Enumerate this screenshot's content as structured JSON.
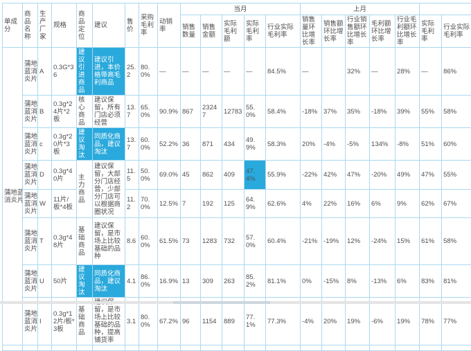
{
  "chart_data": {
    "type": "table",
    "title": "",
    "groups": {
      "current": "当月",
      "last": "上月"
    },
    "columns": [
      {
        "label": "单成分"
      },
      {
        "label": "商品名称"
      },
      {
        "label": "生产厂家"
      },
      {
        "label": "规格"
      },
      {
        "label": "商品定位"
      },
      {
        "label": "建议"
      },
      {
        "label": "售价"
      },
      {
        "label": "采购毛利率"
      },
      {
        "label": "动销率"
      },
      {
        "label": "销售数量"
      },
      {
        "label": "销售金额"
      },
      {
        "label": "实际毛利额"
      },
      {
        "label": "实际毛利率"
      },
      {
        "label": "行业实际毛利率"
      },
      {
        "label": "销售量环比增长率"
      },
      {
        "label": "销售额环比增长率"
      },
      {
        "label": "行业销售额环比增长率"
      },
      {
        "label": "毛利额环比增长率"
      },
      {
        "label": "行业毛利额环比增长率"
      },
      {
        "label": "实际毛利率"
      },
      {
        "label": "行业实际毛利率"
      }
    ],
    "rows": [
      [
        {
          "t": "蒲地蓝\n消炎片",
          "rs": 8,
          "pre": true,
          "n": "component-cell"
        },
        {
          "t": "蒲地\n蓝消\n炎片",
          "pre": true,
          "n": "product-name-cell"
        },
        {
          "t": "A",
          "n": "manufacturer-cell"
        },
        {
          "t": "0.3G*36",
          "n": "spec-cell"
        },
        {
          "t": "建议引进商品",
          "hl": true,
          "n": "positioning-cell"
        },
        {
          "t": "建议引进，本价格带高毛利商品",
          "hl": true,
          "n": "advice-cell"
        },
        {
          "t": "25.2"
        },
        {
          "t": "80.0%"
        },
        {
          "t": "—"
        },
        {
          "t": "—"
        },
        {
          "t": "—"
        },
        {
          "t": "—"
        },
        {
          "t": "—"
        },
        {
          "t": "84.5%"
        },
        {
          "t": "—"
        },
        {
          "t": ""
        },
        {
          "t": "32%"
        },
        {
          "t": "—"
        },
        {
          "t": "28%"
        },
        {
          "t": "—"
        },
        {
          "t": "86%"
        }
      ],
      [
        {
          "t": "蒲地\n蓝消\n炎片",
          "pre": true,
          "n": "product-name-cell"
        },
        {
          "t": "B",
          "n": "manufacturer-cell"
        },
        {
          "t": "0.3g*24片*2板",
          "n": "spec-cell"
        },
        {
          "t": "核心商品",
          "n": "positioning-cell"
        },
        {
          "t": "建议保留，所有门店必须经营",
          "n": "advice-cell"
        },
        {
          "t": "13.7"
        },
        {
          "t": "65.0%"
        },
        {
          "t": "90.9%"
        },
        {
          "t": "867"
        },
        {
          "t": "23247"
        },
        {
          "t": "12783"
        },
        {
          "t": "55.0%"
        },
        {
          "t": "58.4%"
        },
        {
          "t": "-18%"
        },
        {
          "t": "37%"
        },
        {
          "t": "35%"
        },
        {
          "t": "-18%"
        },
        {
          "t": "39%"
        },
        {
          "t": "55%"
        },
        {
          "t": "58%"
        }
      ],
      [
        {
          "t": "蒲地\n蓝消\n炎片",
          "pre": true,
          "n": "product-name-cell"
        },
        {
          "t": "c",
          "n": "manufacturer-cell"
        },
        {
          "t": "0.3g*20片*3板",
          "n": "spec-cell"
        },
        {
          "t": "建议淘汰",
          "hl": true,
          "n": "positioning-cell"
        },
        {
          "t": "同质化商品，建议淘汰",
          "hl": true,
          "n": "advice-cell"
        },
        {
          "t": "13.7"
        },
        {
          "t": "60.0%"
        },
        {
          "t": "52.2%"
        },
        {
          "t": "36"
        },
        {
          "t": "871"
        },
        {
          "t": "434"
        },
        {
          "t": "49.9%"
        },
        {
          "t": "58.3%"
        },
        {
          "t": "20%"
        },
        {
          "t": "-4%"
        },
        {
          "t": "-5%"
        },
        {
          "t": "134%"
        },
        {
          "t": "-8%"
        },
        {
          "t": "51%"
        },
        {
          "t": "60%"
        }
      ],
      [
        {
          "t": "蒲地\n蓝消\n炎片",
          "pre": true,
          "n": "product-name-cell"
        },
        {
          "t": "D",
          "n": "manufacturer-cell"
        },
        {
          "t": "0.3g*40片",
          "n": "spec-cell"
        },
        {
          "t": "主力商品",
          "rs": 2,
          "n": "positioning-cell"
        },
        {
          "t": "建议保留，大部分门店经营，少部分门店可以根据商圈状况",
          "rs": 2,
          "n": "advice-cell"
        },
        {
          "t": "11.5"
        },
        {
          "t": "50.0%"
        },
        {
          "t": "69.0%"
        },
        {
          "t": "45"
        },
        {
          "t": "862"
        },
        {
          "t": "409"
        },
        {
          "t": "47.4%",
          "hlv": true
        },
        {
          "t": "55.9%"
        },
        {
          "t": "-22%"
        },
        {
          "t": "42%"
        },
        {
          "t": "47%"
        },
        {
          "t": "-20%"
        },
        {
          "t": "49%"
        },
        {
          "t": "47%"
        },
        {
          "t": "55%"
        }
      ],
      [
        {
          "t": "蒲地\n蓝消\n炎片",
          "pre": true,
          "n": "product-name-cell"
        },
        {
          "t": "W",
          "n": "manufacturer-cell"
        },
        {
          "t": "11片/板*4板",
          "n": "spec-cell"
        },
        {
          "t": "11.2"
        },
        {
          "t": "70.0%"
        },
        {
          "t": "12.5%"
        },
        {
          "t": "7"
        },
        {
          "t": "192"
        },
        {
          "t": "125"
        },
        {
          "t": "64.9%"
        },
        {
          "t": "62.6%"
        },
        {
          "t": "4%"
        },
        {
          "t": "22%"
        },
        {
          "t": "16%"
        },
        {
          "t": "6%"
        },
        {
          "t": "9%"
        },
        {
          "t": "62%"
        },
        {
          "t": "67%"
        }
      ],
      [
        {
          "t": "蒲地\n蓝消\n炎片",
          "pre": true,
          "n": "product-name-cell"
        },
        {
          "t": "T",
          "n": "manufacturer-cell"
        },
        {
          "t": "0.3g*48片",
          "n": "spec-cell"
        },
        {
          "t": "基础商品",
          "n": "positioning-cell"
        },
        {
          "t": "建议保留，是市场上比较基础的品种",
          "n": "advice-cell"
        },
        {
          "t": "8.6"
        },
        {
          "t": "60.0%"
        },
        {
          "t": "61.5%"
        },
        {
          "t": "73"
        },
        {
          "t": "1283"
        },
        {
          "t": "732"
        },
        {
          "t": "57.0%"
        },
        {
          "t": "60.4%"
        },
        {
          "t": "-21%"
        },
        {
          "t": "-19%"
        },
        {
          "t": "12%"
        },
        {
          "t": "-24%"
        },
        {
          "t": "15%"
        },
        {
          "t": "61%"
        },
        {
          "t": "58%"
        }
      ],
      [
        {
          "t": "蒲地\n蓝消\n炎片",
          "pre": true,
          "n": "product-name-cell"
        },
        {
          "t": "U",
          "n": "manufacturer-cell"
        },
        {
          "t": "50片",
          "n": "spec-cell"
        },
        {
          "t": "建议淘汰",
          "hl": true,
          "n": "positioning-cell"
        },
        {
          "t": "同质化商品，建议淘汰",
          "hl": true,
          "n": "advice-cell"
        },
        {
          "t": "4.1"
        },
        {
          "t": "86.0%"
        },
        {
          "t": "16.9%"
        },
        {
          "t": "13"
        },
        {
          "t": "309"
        },
        {
          "t": "263"
        },
        {
          "t": "85.2%"
        },
        {
          "t": "81.1%"
        },
        {
          "t": "0%"
        },
        {
          "t": "-15%"
        },
        {
          "t": "8%"
        },
        {
          "t": "-13%"
        },
        {
          "t": "6%"
        },
        {
          "t": "83%"
        },
        {
          "t": "81%"
        }
      ],
      [
        {
          "t": "蒲地\n蓝消\n炎片",
          "pre": true,
          "n": "product-name-cell"
        },
        {
          "t": "I",
          "n": "manufacturer-cell"
        },
        {
          "t": "0.3g*12片/板*3板",
          "n": "spec-cell"
        },
        {
          "t": "基础商品",
          "n": "positioning-cell"
        },
        {
          "t": "建议保留，是市场上比较基础的品种，提高铺货率",
          "n": "advice-cell"
        },
        {
          "t": "3.1"
        },
        {
          "t": "80.0%"
        },
        {
          "t": "67.2%"
        },
        {
          "t": "96"
        },
        {
          "t": "1154"
        },
        {
          "t": "889"
        },
        {
          "t": "77.1%"
        },
        {
          "t": "77.3%"
        },
        {
          "t": "-4%"
        },
        {
          "t": "20%"
        },
        {
          "t": "19%"
        },
        {
          "t": "-6%"
        },
        {
          "t": "19%"
        },
        {
          "t": "78%"
        },
        {
          "t": "77%"
        }
      ],
      [
        {
          "t": ""
        },
        {
          "t": ""
        },
        {
          "t": ""
        },
        {
          "t": ""
        },
        {
          "t": ""
        },
        {
          "t": ""
        },
        {
          "t": ""
        },
        {
          "t": ""
        },
        {
          "t": ""
        },
        {
          "t": ""
        },
        {
          "t": ""
        },
        {
          "t": ""
        },
        {
          "t": ""
        },
        {
          "t": ""
        },
        {
          "t": ""
        },
        {
          "t": ""
        },
        {
          "t": ""
        },
        {
          "t": ""
        },
        {
          "t": ""
        },
        {
          "t": ""
        },
        {
          "t": ""
        }
      ]
    ],
    "accent_color": "#2aa9dc",
    "border_color": "#aad8ef"
  }
}
